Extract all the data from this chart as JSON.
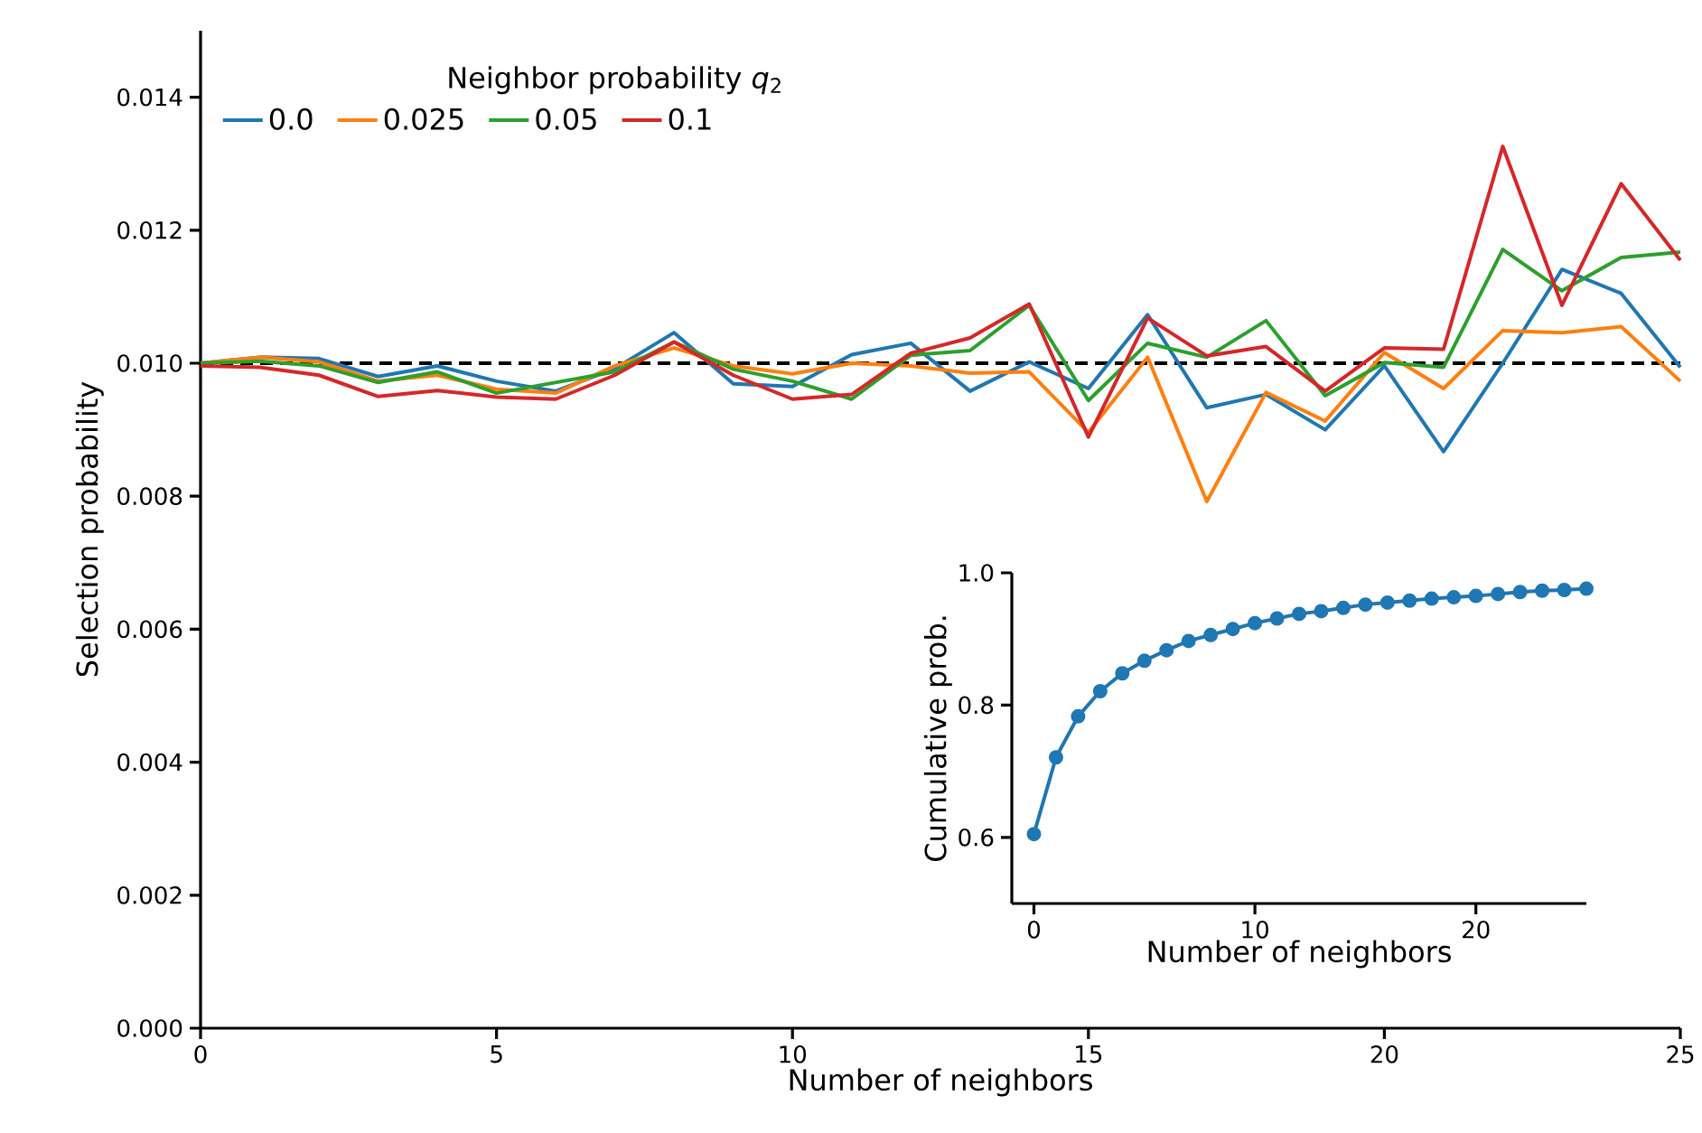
{
  "chart_data": [
    {
      "type": "line",
      "xlabel": "Number of neighbors",
      "ylabel": "Selection probability",
      "legend_title": "Neighbor probability *q*$_{2}$",
      "legend": "top left",
      "x": [
        0,
        1,
        2,
        3,
        4,
        5,
        6,
        7,
        8,
        9,
        10,
        11,
        12,
        13,
        14,
        15,
        16,
        17,
        18,
        19,
        20,
        21,
        22,
        23,
        24,
        25
      ],
      "xlim": [
        0,
        25
      ],
      "xticks": [
        0,
        5,
        10,
        15,
        20,
        25
      ],
      "ylim": [
        0,
        0.015
      ],
      "yticks": [
        {
          "value": 0,
          "label": "0.000"
        },
        {
          "value": 0.002,
          "label": "0.002"
        },
        {
          "value": 0.004,
          "label": "0.004"
        },
        {
          "value": 0.006,
          "label": "0.006"
        },
        {
          "value": 0.008,
          "label": "0.008"
        },
        {
          "value": 0.01,
          "label": "0.010"
        },
        {
          "value": 0.012,
          "label": "0.012"
        },
        {
          "value": 0.014,
          "label": "0.014"
        }
      ],
      "ref_lines": [
        {
          "axis": "y",
          "value": 0.01,
          "color": "#000000",
          "line_style": "dashed"
        }
      ],
      "series": [
        {
          "name": "0.0",
          "color": "#1f77b4",
          "values": [
            0.01,
            0.01009,
            0.01007,
            0.0098,
            0.00996,
            0.00973,
            0.00958,
            0.00992,
            0.01046,
            0.00969,
            0.00965,
            0.01013,
            0.0103,
            0.00958,
            0.01002,
            0.00962,
            0.01073,
            0.00933,
            0.00953,
            0.009,
            0.00996,
            0.00867,
            0.01,
            0.01141,
            0.01105,
            0.00994
          ]
        },
        {
          "name": "0.025",
          "color": "#ff7f0e",
          "values": [
            0.01,
            0.01009,
            0.01002,
            0.00973,
            0.00982,
            0.00961,
            0.00955,
            0.00996,
            0.01023,
            0.00996,
            0.00984,
            0.01,
            0.00996,
            0.00985,
            0.00987,
            0.00896,
            0.01009,
            0.00792,
            0.00956,
            0.00913,
            0.01016,
            0.00962,
            0.01049,
            0.01046,
            0.01055,
            0.00973
          ]
        },
        {
          "name": "0.05",
          "color": "#2ca02c",
          "values": [
            0.01,
            0.01003,
            0.00996,
            0.00971,
            0.00987,
            0.00955,
            0.00971,
            0.00987,
            0.01032,
            0.00991,
            0.00973,
            0.00946,
            0.01012,
            0.01019,
            0.01087,
            0.00944,
            0.0103,
            0.01009,
            0.01064,
            0.00951,
            0.01001,
            0.00994,
            0.01171,
            0.01109,
            0.01159,
            0.01167
          ]
        },
        {
          "name": "0.1",
          "color": "#d62728",
          "values": [
            0.00996,
            0.00994,
            0.00982,
            0.0095,
            0.00959,
            0.00949,
            0.00946,
            0.00982,
            0.01032,
            0.00982,
            0.00946,
            0.00953,
            0.01015,
            0.01038,
            0.01089,
            0.00889,
            0.01068,
            0.01011,
            0.01025,
            0.00958,
            0.01023,
            0.01021,
            0.01326,
            0.01087,
            0.0127,
            0.01155
          ]
        }
      ]
    },
    {
      "type": "line",
      "xlabel": "Number of neighbors",
      "ylabel": "Cumulative prob.",
      "marker": "circle",
      "x": [
        0,
        1,
        2,
        3,
        4,
        5,
        6,
        7,
        8,
        9,
        10,
        11,
        12,
        13,
        14,
        15,
        16,
        17,
        18,
        19,
        20,
        21,
        22,
        23,
        24,
        25
      ],
      "xlim": [
        -1,
        25
      ],
      "xticks": [
        0,
        10,
        20
      ],
      "ylim": [
        0.5,
        1.0
      ],
      "yticks": [
        {
          "value": 0.6,
          "label": "0.6"
        },
        {
          "value": 0.8,
          "label": "0.8"
        },
        {
          "value": 1.0,
          "label": "1.0"
        }
      ],
      "series": [
        {
          "color": "#1f77b4",
          "values": [
            0.605,
            0.721,
            0.783,
            0.821,
            0.848,
            0.867,
            0.883,
            0.897,
            0.906,
            0.915,
            0.924,
            0.931,
            0.938,
            0.942,
            0.947,
            0.952,
            0.955,
            0.958,
            0.961,
            0.963,
            0.965,
            0.968,
            0.971,
            0.973,
            0.974,
            0.976
          ]
        }
      ]
    }
  ]
}
